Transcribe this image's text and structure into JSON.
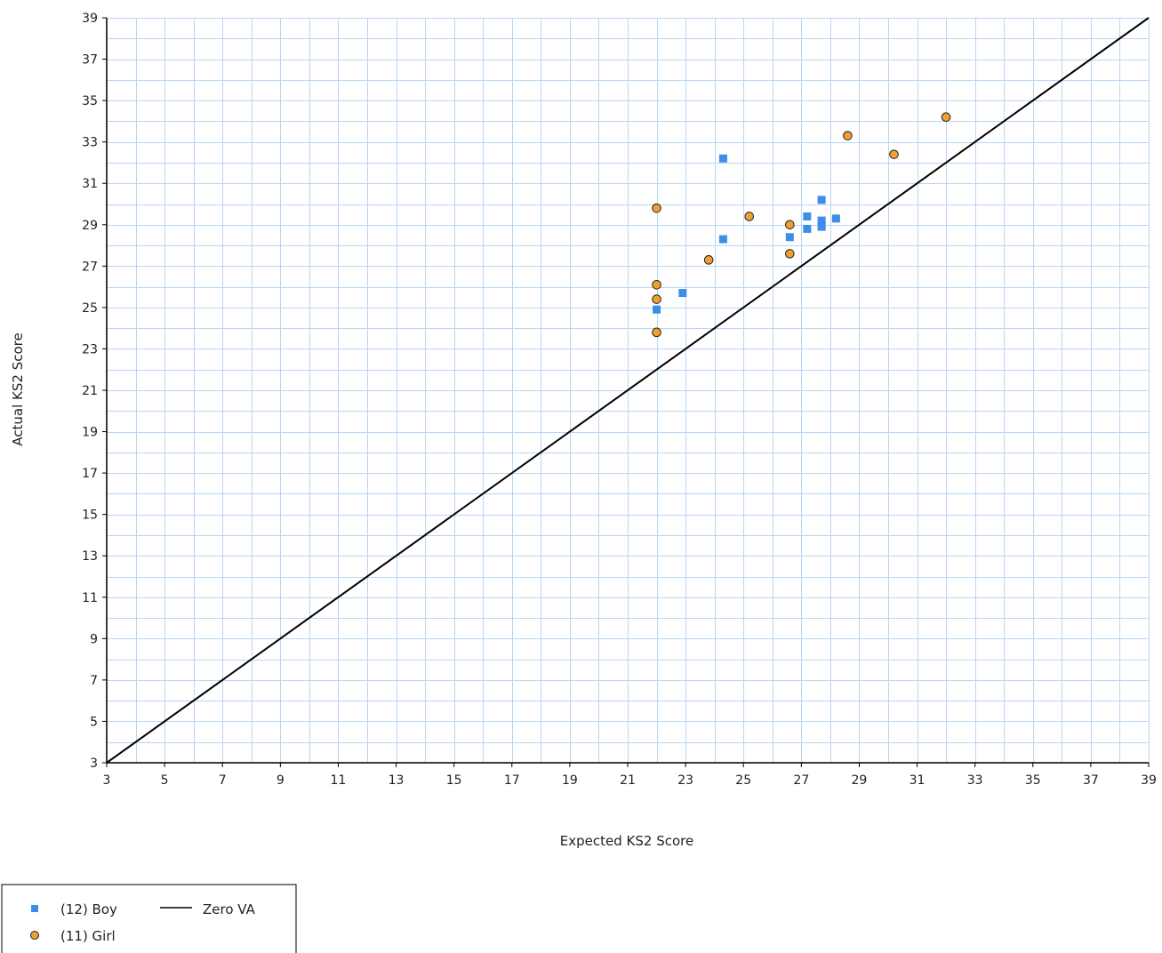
{
  "chart_data": {
    "type": "scatter",
    "title": "",
    "xlabel": "Expected KS2 Score",
    "ylabel": "Actual KS2 Score",
    "xlim": [
      3,
      39
    ],
    "ylim": [
      3,
      39
    ],
    "x_ticks": [
      3,
      5,
      7,
      9,
      11,
      13,
      15,
      17,
      19,
      21,
      23,
      25,
      27,
      29,
      31,
      33,
      35,
      37,
      39
    ],
    "y_ticks": [
      3,
      5,
      7,
      9,
      11,
      13,
      15,
      17,
      19,
      21,
      23,
      25,
      27,
      29,
      31,
      33,
      35,
      37,
      39
    ],
    "grid": true,
    "legend_position": "bottom-left",
    "series": [
      {
        "name": "(12) Boy",
        "marker": "square",
        "color": "#3d8ee8",
        "points": [
          {
            "x": 22.0,
            "y": 24.9
          },
          {
            "x": 22.9,
            "y": 25.7
          },
          {
            "x": 24.3,
            "y": 32.2
          },
          {
            "x": 24.3,
            "y": 28.3
          },
          {
            "x": 26.6,
            "y": 28.4
          },
          {
            "x": 27.2,
            "y": 29.4
          },
          {
            "x": 27.2,
            "y": 28.8
          },
          {
            "x": 27.7,
            "y": 30.2
          },
          {
            "x": 27.7,
            "y": 29.2
          },
          {
            "x": 27.7,
            "y": 29.0
          },
          {
            "x": 27.7,
            "y": 28.9
          },
          {
            "x": 28.2,
            "y": 29.3
          }
        ]
      },
      {
        "name": "(11) Girl",
        "marker": "circle",
        "color": "#f0a030",
        "points": [
          {
            "x": 22.0,
            "y": 29.8
          },
          {
            "x": 22.0,
            "y": 26.1
          },
          {
            "x": 22.0,
            "y": 25.4
          },
          {
            "x": 22.0,
            "y": 23.8
          },
          {
            "x": 23.8,
            "y": 27.3
          },
          {
            "x": 25.2,
            "y": 29.4
          },
          {
            "x": 26.6,
            "y": 29.0
          },
          {
            "x": 26.6,
            "y": 27.6
          },
          {
            "x": 28.6,
            "y": 33.3
          },
          {
            "x": 30.2,
            "y": 32.4
          },
          {
            "x": 32.0,
            "y": 34.2
          }
        ]
      }
    ],
    "reference_line": {
      "name": "Zero VA",
      "color": "#000000",
      "points": [
        {
          "x": 3,
          "y": 3
        },
        {
          "x": 39,
          "y": 39
        }
      ]
    },
    "colors": {
      "grid": "#b8d6f5",
      "axis": "#000000",
      "marker_outline": "#222222"
    }
  }
}
